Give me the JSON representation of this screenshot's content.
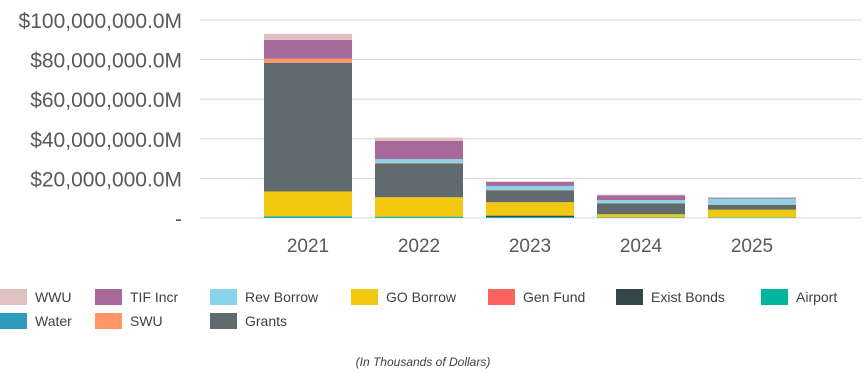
{
  "chart_data": {
    "type": "bar",
    "stacked": true,
    "categories": [
      "2021",
      "2022",
      "2023",
      "2024",
      "2025"
    ],
    "ylim": [
      0,
      100000000
    ],
    "yticks": [
      0,
      20000000,
      40000000,
      60000000,
      80000000,
      100000000
    ],
    "ytick_labels": [
      "-",
      "$20,000,000.0M",
      "$40,000,000.0M",
      "$60,000,000.0M",
      "$80,000,000.0M",
      "$100,000,000.0M"
    ],
    "grid": true,
    "legend_position": "bottom",
    "footnote": "(In Thousands of Dollars)",
    "series": [
      {
        "name": "Water",
        "color": "#2E9BBD",
        "values": [
          300000,
          300000,
          200000,
          100000,
          100000
        ]
      },
      {
        "name": "Airport",
        "color": "#00B5A0",
        "values": [
          600000,
          400000,
          300000,
          300000,
          200000
        ]
      },
      {
        "name": "Exist Bonds",
        "color": "#374649",
        "values": [
          0,
          0,
          700000,
          0,
          0
        ]
      },
      {
        "name": "GO Borrow",
        "color": "#F2C811",
        "values": [
          12500000,
          9800000,
          6800000,
          1500000,
          3900000
        ]
      },
      {
        "name": "Gen Fund",
        "color": "#FD625E",
        "values": [
          0,
          0,
          0,
          0,
          0
        ]
      },
      {
        "name": "Grants",
        "color": "#5F6B6D",
        "values": [
          65000000,
          17000000,
          6000000,
          5500000,
          2500000
        ]
      },
      {
        "name": "SWU",
        "color": "#FE9666",
        "values": [
          2000000,
          300000,
          200000,
          100000,
          200000
        ]
      },
      {
        "name": "Rev Borrow",
        "color": "#8AD4EB",
        "values": [
          0,
          2000000,
          2000000,
          1600000,
          2900000
        ]
      },
      {
        "name": "TIF Incr",
        "color": "#A66999",
        "values": [
          9500000,
          9200000,
          2000000,
          2400000,
          300000
        ]
      },
      {
        "name": "WWU",
        "color": "#DEC1C0",
        "values": [
          3100000,
          1600000,
          300000,
          300000,
          500000
        ]
      }
    ],
    "legend_order": [
      "WWU",
      "TIF Incr",
      "Rev Borrow",
      "GO Borrow",
      "Gen Fund",
      "Exist Bonds",
      "Airport",
      "Water",
      "SWU",
      "Grants"
    ]
  }
}
